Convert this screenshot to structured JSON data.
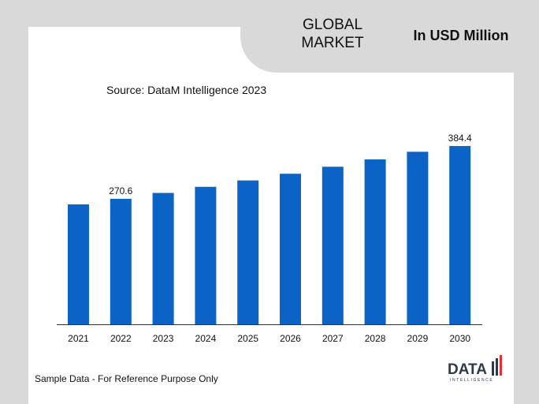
{
  "header": {
    "market_label": "GLOBAL MARKET",
    "unit_label": "In USD Million"
  },
  "source": "Source: DataM Intelligence  2023",
  "footnote": "Sample Data - For Reference Purpose Only",
  "logo": {
    "text": "DATA",
    "subtext": "INTELLIGENCE"
  },
  "colors": {
    "bar": "#0a63c5",
    "background": "#d9d9d9",
    "card": "#ffffff"
  },
  "chart_data": {
    "type": "bar",
    "categories": [
      "2021",
      "2022",
      "2023",
      "2024",
      "2025",
      "2026",
      "2027",
      "2028",
      "2029",
      "2030"
    ],
    "values": [
      258.5,
      270.6,
      283.2,
      296.4,
      310.2,
      324.6,
      339.7,
      355.5,
      372.0,
      384.4
    ],
    "data_labels": [
      {
        "index": 1,
        "text": "270.6"
      },
      {
        "index": 9,
        "text": "384.4"
      }
    ],
    "title": "",
    "xlabel": "",
    "ylabel": "",
    "ylim": [
      0,
      410
    ],
    "grid": false,
    "legend": "none"
  }
}
